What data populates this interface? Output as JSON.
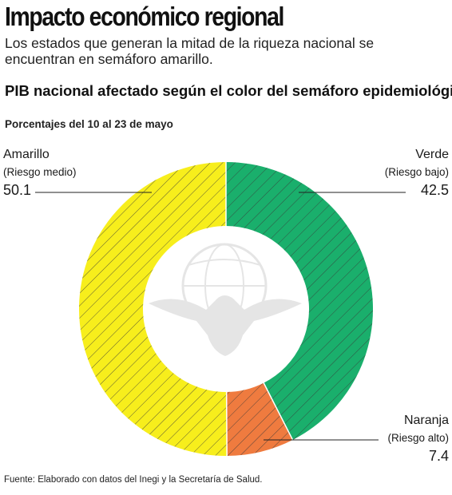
{
  "header": {
    "title": "Impacto económico regional",
    "subtitle": "Los estados que generan la mitad de la riqueza  nacional se encuentran en semáforo amarillo."
  },
  "chart_data": {
    "type": "pie",
    "title": "PIB nacional afectado según el color del semáforo epidemiológico",
    "subtitle": "Porcentajes del 10 al 23 de mayo",
    "donut": true,
    "slices": [
      {
        "name": "Verde",
        "risk": "(Riesgo bajo)",
        "value": 42.5,
        "value_label": "42.5",
        "color": "#1aaf6c"
      },
      {
        "name": "Naranja",
        "risk": "(Riesgo alto)",
        "value": 7.4,
        "value_label": "7.4",
        "color": "#ef7b3f"
      },
      {
        "name": "Amarillo",
        "risk": "(Riesgo medio)",
        "value": 50.1,
        "value_label": "50.1",
        "color": "#f7ee1c"
      }
    ],
    "order": "clockwise from top",
    "pattern": "diagonal hatching"
  },
  "footer": {
    "source": "Fuente: Elaborado con datos del Inegi y la Secretaría de Salud."
  }
}
